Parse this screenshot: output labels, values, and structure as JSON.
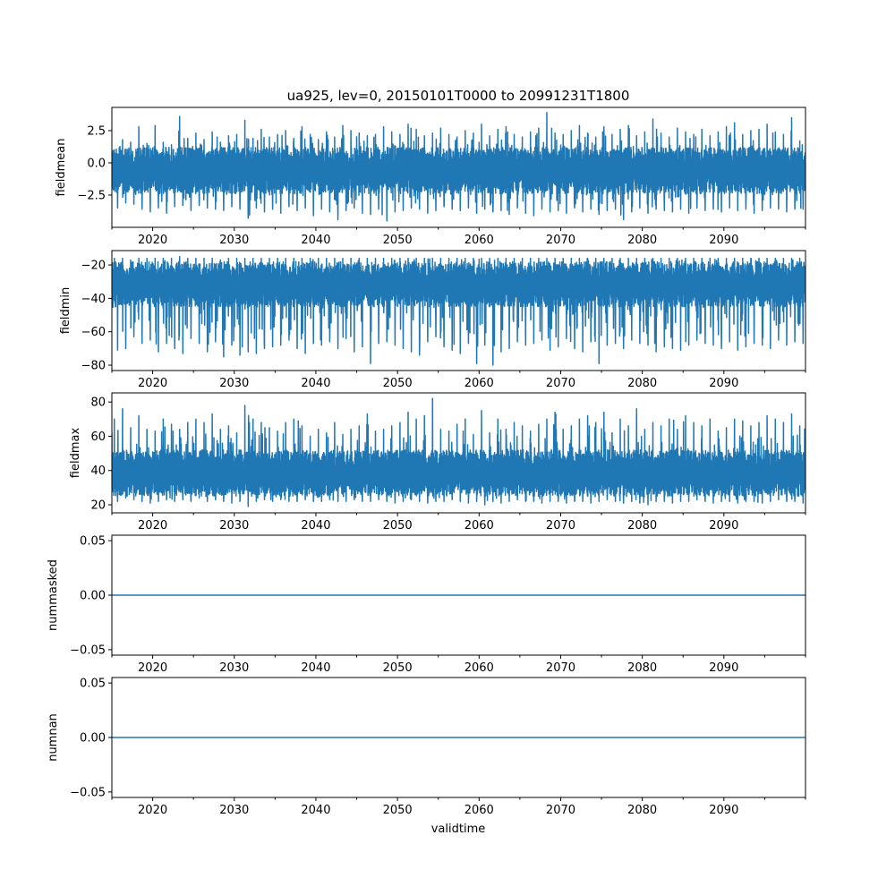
{
  "chart_data": {
    "type": "line",
    "title": "ua925, lev=0, 20150101T0000 to 20991231T1800",
    "xlabel": "validtime",
    "xlim": [
      2015,
      2100
    ],
    "x_ticks": [
      2020,
      2030,
      2040,
      2050,
      2060,
      2070,
      2080,
      2090
    ],
    "x_tick_labels": [
      "2020",
      "2030",
      "2040",
      "2050",
      "2060",
      "2070",
      "2080",
      "2090"
    ],
    "x_minor_ticks": [
      2015,
      2025,
      2035,
      2045,
      2055,
      2065,
      2075,
      2085,
      2095,
      2100
    ],
    "x_years": [
      2015,
      2016,
      2017,
      2018,
      2019,
      2020,
      2021,
      2022,
      2023,
      2024,
      2025,
      2026,
      2027,
      2028,
      2029,
      2030,
      2031,
      2032,
      2033,
      2034,
      2035,
      2036,
      2037,
      2038,
      2039,
      2040,
      2041,
      2042,
      2043,
      2044,
      2045,
      2046,
      2047,
      2048,
      2049,
      2050,
      2051,
      2052,
      2053,
      2054,
      2055,
      2056,
      2057,
      2058,
      2059,
      2060,
      2061,
      2062,
      2063,
      2064,
      2065,
      2066,
      2067,
      2068,
      2069,
      2070,
      2071,
      2072,
      2073,
      2074,
      2075,
      2076,
      2077,
      2078,
      2079,
      2080,
      2081,
      2082,
      2083,
      2084,
      2085,
      2086,
      2087,
      2088,
      2089,
      2090,
      2091,
      2092,
      2093,
      2094,
      2095,
      2096,
      2097,
      2098,
      2099
    ],
    "color": "#1f77b4",
    "panels": [
      {
        "ylabel": "fieldmean",
        "ylim": [
          -5.0,
          4.3
        ],
        "y_ticks": [
          2.5,
          0.0,
          -2.5
        ],
        "y_tick_labels": [
          "2.5",
          "0.0",
          "−2.5"
        ],
        "core": [
          -2.4,
          1.2
        ],
        "yearly_max": [
          1.0,
          1.8,
          1.6,
          2.8,
          1.5,
          2.9,
          1.6,
          1.4,
          3.6,
          1.9,
          2.3,
          1.8,
          2.4,
          1.6,
          2.1,
          2.2,
          3.3,
          1.9,
          2.6,
          2.0,
          2.2,
          2.5,
          1.9,
          2.8,
          2.2,
          1.8,
          2.4,
          2.0,
          2.9,
          2.5,
          2.3,
          2.1,
          2.2,
          2.8,
          2.4,
          2.2,
          3.0,
          2.6,
          2.1,
          2.3,
          2.7,
          2.2,
          2.0,
          2.5,
          2.3,
          3.0,
          2.1,
          2.6,
          2.8,
          2.2,
          2.0,
          2.4,
          2.7,
          3.9,
          2.3,
          2.2,
          2.5,
          2.9,
          2.3,
          2.0,
          2.8,
          2.2,
          2.6,
          2.9,
          2.1,
          2.4,
          3.4,
          2.3,
          2.0,
          2.7,
          2.4,
          2.2,
          2.6,
          2.1,
          2.4,
          2.8,
          3.1,
          2.2,
          2.5,
          2.6,
          3.0,
          2.4,
          2.2,
          3.5,
          1.7
        ],
        "yearly_min": [
          -3.5,
          -3.1,
          -3.2,
          -3.6,
          -3.8,
          -3.5,
          -3.9,
          -3.4,
          -3.3,
          -3.7,
          -3.3,
          -3.5,
          -3.6,
          -3.7,
          -3.4,
          -3.6,
          -4.3,
          -3.5,
          -3.8,
          -3.6,
          -3.9,
          -3.4,
          -3.7,
          -3.5,
          -4.1,
          -3.6,
          -3.8,
          -4.4,
          -3.7,
          -3.5,
          -3.9,
          -4.0,
          -3.6,
          -4.5,
          -3.8,
          -3.7,
          -3.5,
          -3.6,
          -3.9,
          -3.7,
          -3.4,
          -3.6,
          -3.7,
          -3.5,
          -3.9,
          -3.6,
          -3.8,
          -3.7,
          -4.0,
          -3.5,
          -3.9,
          -4.1,
          -3.6,
          -3.8,
          -3.7,
          -3.9,
          -3.5,
          -3.8,
          -3.6,
          -4.0,
          -3.7,
          -3.6,
          -4.4,
          -3.8,
          -3.5,
          -3.9,
          -3.6,
          -3.7,
          -3.8,
          -3.6,
          -3.9,
          -3.5,
          -3.7,
          -3.6,
          -3.8,
          -3.5,
          -3.7,
          -3.6,
          -3.9,
          -3.7,
          -3.5,
          -3.6,
          -3.8,
          -3.6,
          -3.6
        ]
      },
      {
        "ylabel": "fieldmin",
        "ylim": [
          -83.2,
          -11.4
        ],
        "y_ticks": [
          -20,
          -40,
          -60,
          -80
        ],
        "y_tick_labels": [
          "−20",
          "−40",
          "−60",
          "−80"
        ],
        "core": [
          -45,
          -18
        ],
        "yearly_max": [
          -16,
          -16,
          -17,
          -16,
          -16,
          -16,
          -16,
          -16,
          -15,
          -16,
          -16,
          -16,
          -16,
          -17,
          -16,
          -16,
          -16,
          -16,
          -16,
          -16,
          -16,
          -16,
          -16,
          -16,
          -16,
          -16,
          -16,
          -16,
          -16,
          -16,
          -16,
          -16,
          -16,
          -16,
          -16,
          -16,
          -16,
          -16,
          -16,
          -16,
          -16,
          -16,
          -16,
          -16,
          -16,
          -16,
          -16,
          -16,
          -16,
          -16,
          -16,
          -16,
          -16,
          -16,
          -16,
          -16,
          -16,
          -16,
          -16,
          -16,
          -16,
          -16,
          -16,
          -16,
          -16,
          -16,
          -16,
          -16,
          -16,
          -16,
          -16,
          -16,
          -16,
          -16,
          -16,
          -16,
          -16,
          -16,
          -16,
          -16,
          -16,
          -16,
          -16,
          -16,
          -16
        ],
        "yearly_min": [
          -71,
          -70,
          -63,
          -67,
          -65,
          -72,
          -67,
          -70,
          -73,
          -64,
          -67,
          -72,
          -66,
          -75,
          -68,
          -74,
          -72,
          -73,
          -70,
          -69,
          -68,
          -65,
          -70,
          -73,
          -67,
          -68,
          -66,
          -70,
          -64,
          -72,
          -69,
          -79,
          -67,
          -66,
          -68,
          -70,
          -72,
          -74,
          -66,
          -63,
          -69,
          -71,
          -73,
          -67,
          -79,
          -68,
          -80,
          -72,
          -70,
          -66,
          -68,
          -67,
          -65,
          -71,
          -69,
          -64,
          -70,
          -72,
          -66,
          -79,
          -68,
          -67,
          -70,
          -65,
          -67,
          -68,
          -72,
          -69,
          -70,
          -71,
          -68,
          -65,
          -67,
          -68,
          -70,
          -66,
          -71,
          -69,
          -67,
          -68,
          -70,
          -65,
          -68,
          -66,
          -67
        ]
      },
      {
        "ylabel": "fieldmax",
        "ylim": [
          15.3,
          85.3
        ],
        "y_ticks": [
          80,
          60,
          40,
          20
        ],
        "y_tick_labels": [
          "80",
          "60",
          "40",
          "20"
        ],
        "core": [
          25,
          52
        ],
        "yearly_max": [
          70,
          76,
          65,
          72,
          64,
          63,
          70,
          67,
          64,
          68,
          70,
          68,
          73,
          64,
          66,
          62,
          78,
          70,
          68,
          65,
          63,
          68,
          70,
          66,
          60,
          64,
          62,
          68,
          61,
          64,
          66,
          73,
          63,
          64,
          66,
          68,
          74,
          70,
          72,
          82,
          64,
          63,
          67,
          70,
          61,
          75,
          62,
          70,
          64,
          68,
          66,
          63,
          67,
          70,
          74,
          64,
          66,
          70,
          72,
          68,
          74,
          62,
          70,
          66,
          76,
          64,
          68,
          66,
          70,
          64,
          72,
          68,
          66,
          70,
          63,
          65,
          70,
          69,
          66,
          68,
          72,
          70,
          68,
          73,
          66
        ],
        "yearly_min": [
          22,
          24,
          23,
          22,
          21,
          22,
          23,
          22,
          23,
          22,
          24,
          22,
          23,
          22,
          21,
          22,
          19,
          22,
          23,
          22,
          23,
          22,
          22,
          23,
          22,
          22,
          23,
          22,
          22,
          23,
          22,
          22,
          23,
          22,
          21,
          22,
          23,
          22,
          21,
          22,
          22,
          23,
          22,
          21,
          22,
          20,
          22,
          21,
          22,
          23,
          22,
          22,
          21,
          22,
          22,
          21,
          22,
          22,
          21,
          22,
          23,
          22,
          21,
          22,
          21,
          20,
          22,
          22,
          21,
          22,
          22,
          23,
          22,
          21,
          22,
          22,
          21,
          22,
          22,
          21,
          22,
          23,
          22,
          22,
          21
        ]
      },
      {
        "ylabel": "nummasked",
        "ylim": [
          -0.055,
          0.055
        ],
        "y_ticks": [
          0.05,
          0.0,
          -0.05
        ],
        "y_tick_labels": [
          "0.05",
          "0.00",
          "−0.05"
        ],
        "constant": 0.0
      },
      {
        "ylabel": "numnan",
        "ylim": [
          -0.055,
          0.055
        ],
        "y_ticks": [
          0.05,
          0.0,
          -0.05
        ],
        "y_tick_labels": [
          "0.05",
          "0.00",
          "−0.05"
        ],
        "constant": 0.0
      }
    ]
  }
}
